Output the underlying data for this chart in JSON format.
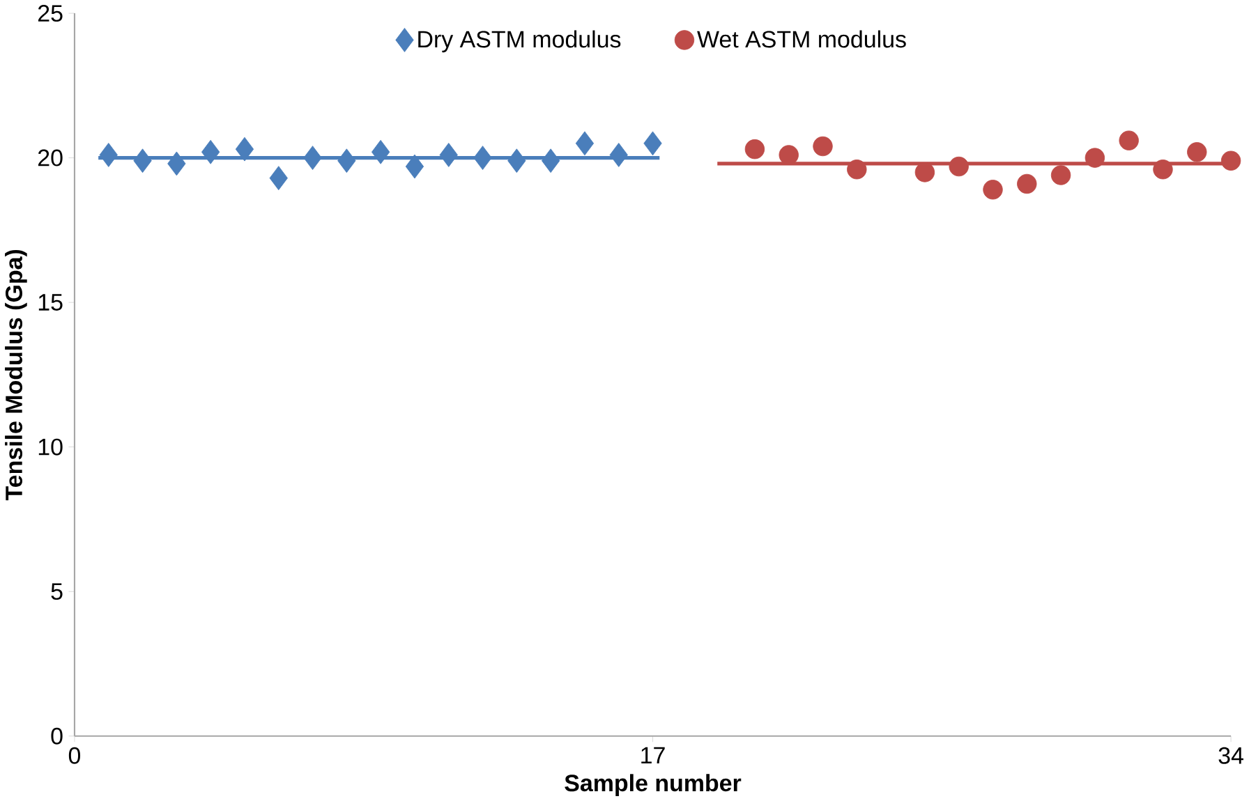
{
  "chart_data": {
    "type": "scatter",
    "xlabel": "Sample number",
    "ylabel": "Tensile Modulus (Gpa)",
    "xlim": [
      0,
      34
    ],
    "xticks": [
      0,
      17,
      34
    ],
    "ylim": [
      0,
      25
    ],
    "yticks": [
      0,
      5,
      10,
      15,
      20,
      25
    ],
    "legend": "top",
    "grid": false,
    "series": [
      {
        "name": "Dry ASTM modulus",
        "color": "#4a7ebb",
        "marker": "diamond",
        "x": [
          1,
          2,
          3,
          4,
          5,
          6,
          7,
          8,
          9,
          10,
          11,
          12,
          13,
          14,
          15,
          16,
          17
        ],
        "values": [
          20.1,
          19.9,
          19.8,
          20.2,
          20.3,
          19.3,
          20.0,
          19.9,
          20.2,
          19.7,
          20.1,
          20.0,
          19.9,
          19.9,
          20.5,
          20.1,
          20.5
        ]
      },
      {
        "name": "Wet ASTM modulus",
        "color": "#be4b48",
        "marker": "circle",
        "x": [
          20,
          21,
          22,
          23,
          25,
          26,
          27,
          28,
          29,
          30,
          31,
          32,
          33,
          34
        ],
        "values": [
          20.3,
          20.1,
          20.4,
          19.6,
          19.5,
          19.7,
          18.9,
          19.1,
          19.4,
          20.0,
          20.6,
          19.6,
          20.2,
          19.9
        ]
      },
      {
        "type": "line",
        "color": "#4a7ebb",
        "x": [
          0.7,
          17.2
        ],
        "values": [
          20.0,
          20.0
        ]
      },
      {
        "type": "line",
        "color": "#be4b48",
        "x": [
          18.9,
          34
        ],
        "values": [
          19.8,
          19.8
        ]
      }
    ]
  }
}
